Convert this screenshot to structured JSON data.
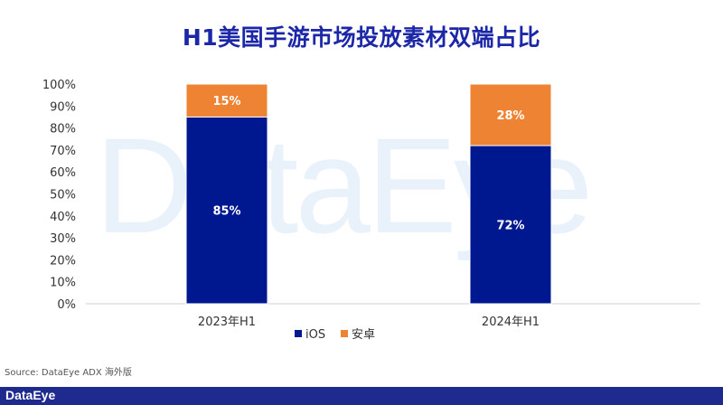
{
  "title": "H1美国手游市场投放素材双端占比",
  "watermark": "DataEye",
  "source": "Source: DataEye ADX 海外版",
  "footer_logo": "DataEye",
  "colors": {
    "ios": "#00188f",
    "android": "#ee8433",
    "title": "#1c27a8",
    "footer": "#1f2a8f"
  },
  "chart_data": {
    "type": "bar",
    "stacked": true,
    "categories": [
      "2023年H1",
      "2024年H1"
    ],
    "series": [
      {
        "name": "iOS",
        "values": [
          85,
          72
        ],
        "labels": [
          "85%",
          "72%"
        ]
      },
      {
        "name": "安卓",
        "values": [
          15,
          28
        ],
        "labels": [
          "15%",
          "28%"
        ]
      }
    ],
    "ylim": [
      0,
      100
    ],
    "yticks": [
      "0%",
      "10%",
      "20%",
      "30%",
      "40%",
      "50%",
      "60%",
      "70%",
      "80%",
      "90%",
      "100%"
    ],
    "grid": false,
    "legend": "bottom-center"
  }
}
